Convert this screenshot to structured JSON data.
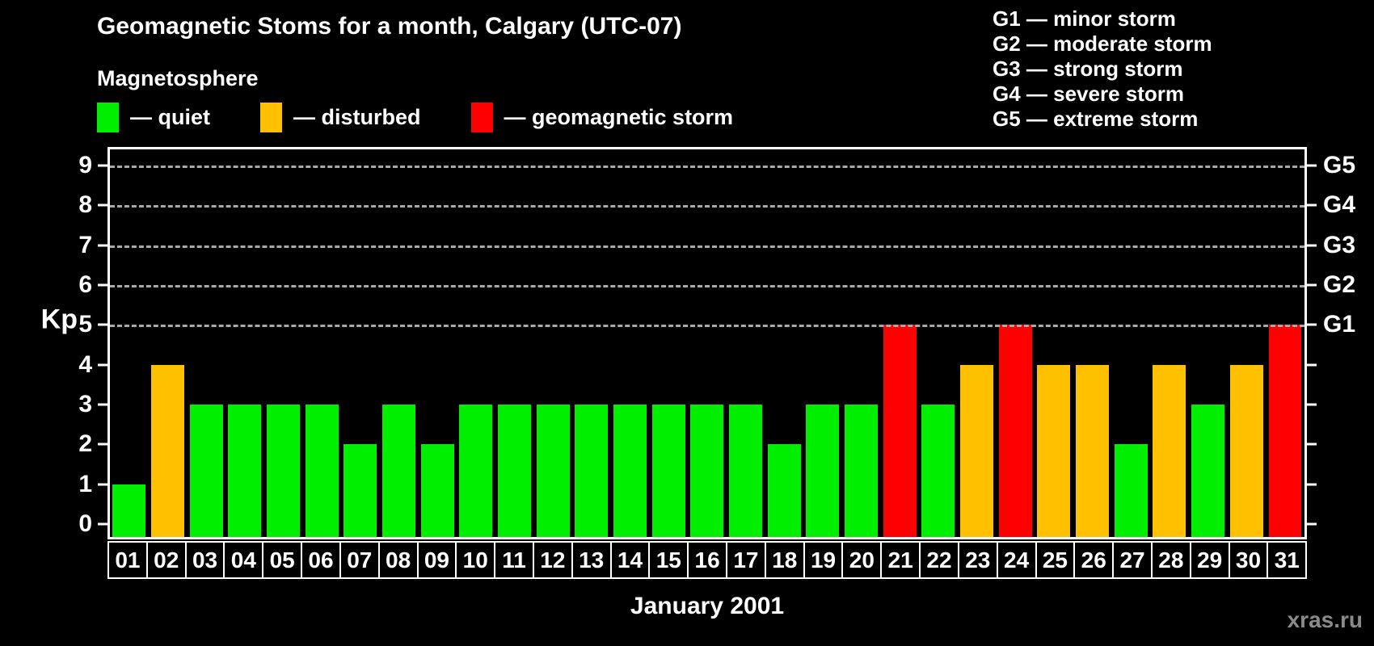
{
  "title": "Geomagnetic Stoms for a month, Calgary (UTC-07)",
  "magnetosphere": {
    "heading": "Magnetosphere",
    "items": [
      {
        "key": "quiet",
        "label": "— quiet",
        "color": "#00EE00"
      },
      {
        "key": "disturbed",
        "label": "— disturbed",
        "color": "#FFC000"
      },
      {
        "key": "storm",
        "label": "— geomagnetic storm",
        "color": "#FF0000"
      }
    ]
  },
  "storm_scale": [
    "G1 — minor storm",
    "G2 — moderate storm",
    "G3 — strong storm",
    "G4 — severe storm",
    "G5 — extreme storm"
  ],
  "watermark": "xras.ru",
  "chart_data": {
    "type": "bar",
    "title": "Geomagnetic Stoms for a month, Calgary (UTC-07)",
    "xlabel": "January 2001",
    "ylabel": "Kp",
    "ylim": [
      0,
      9
    ],
    "render_ylim": [
      -0.32,
      9.4
    ],
    "grid": "horizontal dashed lines at Kp 5 to 9 (G1 to G5)",
    "gridlines_at": [
      5,
      6,
      7,
      8,
      9
    ],
    "left_ticks": [
      0,
      1,
      2,
      3,
      4,
      5,
      6,
      7,
      8,
      9
    ],
    "right_tick_labels": {
      "5": "G1",
      "6": "G2",
      "7": "G3",
      "8": "G4",
      "9": "G5"
    },
    "legend_position": "top-left",
    "categories": [
      "01",
      "02",
      "03",
      "04",
      "05",
      "06",
      "07",
      "08",
      "09",
      "10",
      "11",
      "12",
      "13",
      "14",
      "15",
      "16",
      "17",
      "18",
      "19",
      "20",
      "21",
      "22",
      "23",
      "24",
      "25",
      "26",
      "27",
      "28",
      "29",
      "30",
      "31"
    ],
    "values": [
      1,
      4,
      3,
      3,
      3,
      3,
      2,
      3,
      2,
      3,
      3,
      3,
      3,
      3,
      3,
      3,
      3,
      2,
      3,
      3,
      5,
      3,
      4,
      5,
      4,
      4,
      2,
      4,
      3,
      4,
      5
    ],
    "statuses": [
      "quiet",
      "disturbed",
      "quiet",
      "quiet",
      "quiet",
      "quiet",
      "quiet",
      "quiet",
      "quiet",
      "quiet",
      "quiet",
      "quiet",
      "quiet",
      "quiet",
      "quiet",
      "quiet",
      "quiet",
      "quiet",
      "quiet",
      "quiet",
      "storm",
      "quiet",
      "disturbed",
      "storm",
      "disturbed",
      "disturbed",
      "quiet",
      "disturbed",
      "quiet",
      "disturbed",
      "storm"
    ],
    "status_colors": {
      "quiet": "#00EE00",
      "disturbed": "#FFC000",
      "storm": "#FF0000"
    }
  }
}
